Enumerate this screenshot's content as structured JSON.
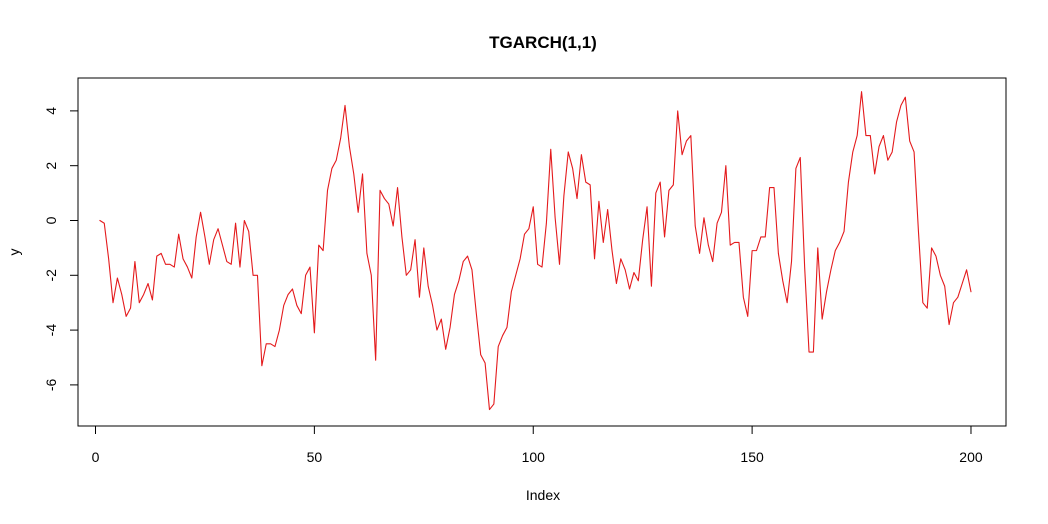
{
  "chart_data": {
    "type": "line",
    "title": "TGARCH(1,1)",
    "xlabel": "Index",
    "ylabel": "y",
    "xlim": [
      -4,
      208
    ],
    "ylim": [
      -7.5,
      5.2
    ],
    "x_ticks": [
      0,
      50,
      100,
      150,
      200
    ],
    "y_ticks": [
      -6,
      -4,
      -2,
      0,
      2,
      4
    ],
    "x_tick_labels": [
      "0",
      "50",
      "100",
      "150",
      "200"
    ],
    "y_tick_labels": [
      "-6",
      "-4",
      "-2",
      "0",
      "2",
      "4"
    ],
    "grid": false,
    "legend": "none",
    "series": [
      {
        "color": "#e41a1c",
        "x_start": 1,
        "values": [
          0.0,
          -0.1,
          -1.4,
          -3.0,
          -2.1,
          -2.7,
          -3.5,
          -3.2,
          -1.5,
          -3.0,
          -2.7,
          -2.3,
          -2.9,
          -1.3,
          -1.2,
          -1.6,
          -1.6,
          -1.7,
          -0.5,
          -1.4,
          -1.7,
          -2.1,
          -0.6,
          0.3,
          -0.6,
          -1.6,
          -0.7,
          -0.3,
          -0.9,
          -1.5,
          -1.6,
          -0.1,
          -1.7,
          0.0,
          -0.4,
          -2.0,
          -2.0,
          -5.3,
          -4.5,
          -4.5,
          -4.6,
          -4.0,
          -3.1,
          -2.7,
          -2.5,
          -3.1,
          -3.4,
          -2.0,
          -1.7,
          -4.1,
          -0.9,
          -1.1,
          1.1,
          1.9,
          2.2,
          3.0,
          4.2,
          2.7,
          1.7,
          0.3,
          1.7,
          -1.2,
          -2.0,
          -5.1,
          1.1,
          0.8,
          0.6,
          -0.2,
          1.2,
          -0.6,
          -2.0,
          -1.8,
          -0.7,
          -2.8,
          -1.0,
          -2.4,
          -3.1,
          -4.0,
          -3.6,
          -4.7,
          -3.9,
          -2.7,
          -2.2,
          -1.5,
          -1.3,
          -1.8,
          -3.4,
          -4.9,
          -5.2,
          -6.9,
          -6.7,
          -4.6,
          -4.2,
          -3.9,
          -2.6,
          -2.0,
          -1.4,
          -0.5,
          -0.3,
          0.5,
          -1.6,
          -1.7,
          -0.1,
          2.6,
          0.1,
          -1.6,
          0.9,
          2.5,
          1.9,
          0.8,
          2.4,
          1.4,
          1.3,
          -1.4,
          0.7,
          -0.8,
          0.4,
          -1.1,
          -2.3,
          -1.4,
          -1.8,
          -2.5,
          -1.9,
          -2.2,
          -0.7,
          0.5,
          -2.4,
          1.0,
          1.4,
          -0.6,
          1.1,
          1.3,
          4.0,
          2.4,
          2.9,
          3.1,
          -0.2,
          -1.2,
          0.1,
          -0.9,
          -1.5,
          -0.1,
          0.3,
          2.0,
          -0.9,
          -0.8,
          -0.8,
          -2.8,
          -3.5,
          -1.1,
          -1.1,
          -0.6,
          -0.6,
          1.2,
          1.2,
          -1.2,
          -2.2,
          -3.0,
          -1.5,
          1.9,
          2.3,
          -1.7,
          -4.8,
          -4.8,
          -1.0,
          -3.6,
          -2.6,
          -1.8,
          -1.1,
          -0.8,
          -0.4,
          1.4,
          2.5,
          3.1,
          4.7,
          3.1,
          3.1,
          1.7,
          2.7,
          3.1,
          2.2,
          2.5,
          3.6,
          4.2,
          4.5,
          2.9,
          2.5,
          -0.4,
          -3.0,
          -3.2,
          -1.0,
          -1.3,
          -2.0,
          -2.4,
          -3.8,
          -3.0,
          -2.8,
          -2.3,
          -1.8,
          -2.6
        ]
      }
    ]
  }
}
